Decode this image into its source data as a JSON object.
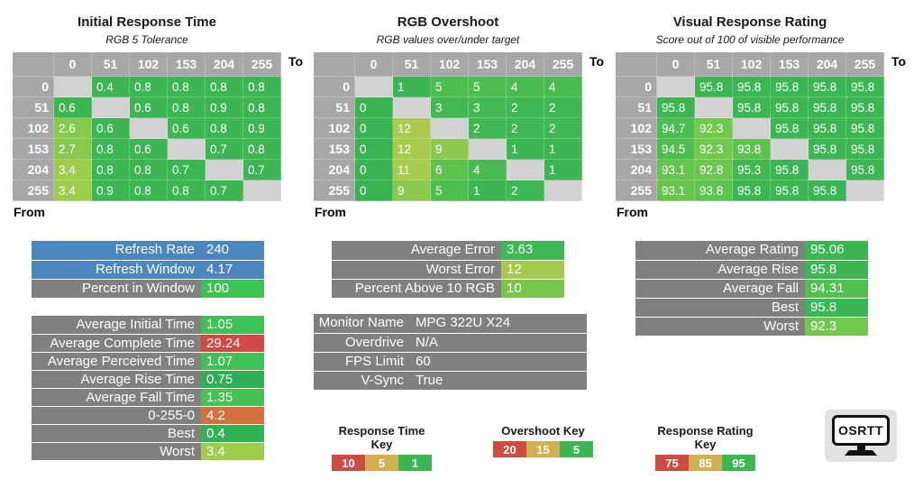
{
  "tables": [
    {
      "title": "Initial Response Time",
      "subtitle": "RGB 5 Tolerance",
      "to_label": "To",
      "from_label": "From",
      "columns": [
        "0",
        "51",
        "102",
        "153",
        "204",
        "255"
      ],
      "rows": [
        {
          "h": "0",
          "cells": [
            null,
            {
              "t": "0.4",
              "bg": "#3cb553"
            },
            {
              "t": "0.8",
              "bg": "#3cb553"
            },
            {
              "t": "0.8",
              "bg": "#3cb553"
            },
            {
              "t": "0.8",
              "bg": "#3cb553"
            },
            {
              "t": "0.8",
              "bg": "#3cb553"
            }
          ]
        },
        {
          "h": "51",
          "cells": [
            {
              "t": "0.6",
              "bg": "#3cb553"
            },
            null,
            {
              "t": "0.6",
              "bg": "#3cb553"
            },
            {
              "t": "0.8",
              "bg": "#3cb553"
            },
            {
              "t": "0.9",
              "bg": "#3cb553"
            },
            {
              "t": "0.8",
              "bg": "#3cb553"
            }
          ]
        },
        {
          "h": "102",
          "cells": [
            {
              "t": "2.6",
              "bg": "#85c94f"
            },
            {
              "t": "0.6",
              "bg": "#3cb553"
            },
            null,
            {
              "t": "0.6",
              "bg": "#3cb553"
            },
            {
              "t": "0.8",
              "bg": "#3cb553"
            },
            {
              "t": "0.9",
              "bg": "#3cb553"
            }
          ]
        },
        {
          "h": "153",
          "cells": [
            {
              "t": "2.7",
              "bg": "#87c94f"
            },
            {
              "t": "0.8",
              "bg": "#3cb553"
            },
            {
              "t": "0.6",
              "bg": "#3cb553"
            },
            null,
            {
              "t": "0.7",
              "bg": "#3cb553"
            },
            {
              "t": "0.8",
              "bg": "#3cb553"
            }
          ]
        },
        {
          "h": "204",
          "cells": [
            {
              "t": "3.4",
              "bg": "#9ecd4b"
            },
            {
              "t": "0.8",
              "bg": "#3cb553"
            },
            {
              "t": "0.8",
              "bg": "#3cb553"
            },
            {
              "t": "0.7",
              "bg": "#3cb553"
            },
            null,
            {
              "t": "0.7",
              "bg": "#3cb553"
            }
          ]
        },
        {
          "h": "255",
          "cells": [
            {
              "t": "3.4",
              "bg": "#9ecd4b"
            },
            {
              "t": "0.9",
              "bg": "#3cb553"
            },
            {
              "t": "0.8",
              "bg": "#3cb553"
            },
            {
              "t": "0.8",
              "bg": "#3cb553"
            },
            {
              "t": "0.7",
              "bg": "#3cb553"
            },
            null
          ]
        }
      ]
    },
    {
      "title": "RGB Overshoot",
      "subtitle": "RGB values over/under target",
      "to_label": "To",
      "from_label": "From",
      "columns": [
        "0",
        "51",
        "102",
        "153",
        "204",
        "255"
      ],
      "rows": [
        {
          "h": "0",
          "cells": [
            null,
            {
              "t": "1",
              "bg": "#3cb553"
            },
            {
              "t": "5",
              "bg": "#4fbe50"
            },
            {
              "t": "5",
              "bg": "#4fbe50"
            },
            {
              "t": "4",
              "bg": "#48bb51"
            },
            {
              "t": "4",
              "bg": "#48bb51"
            }
          ]
        },
        {
          "h": "51",
          "cells": [
            {
              "t": "0",
              "bg": "#3ab453"
            },
            null,
            {
              "t": "3",
              "bg": "#42b952"
            },
            {
              "t": "3",
              "bg": "#42b952"
            },
            {
              "t": "2",
              "bg": "#3fb753"
            },
            {
              "t": "2",
              "bg": "#3fb753"
            }
          ]
        },
        {
          "h": "102",
          "cells": [
            {
              "t": "0",
              "bg": "#3ab453"
            },
            {
              "t": "12",
              "bg": "#aacc4e"
            },
            null,
            {
              "t": "2",
              "bg": "#3fb753"
            },
            {
              "t": "2",
              "bg": "#3fb753"
            },
            {
              "t": "2",
              "bg": "#3fb753"
            }
          ]
        },
        {
          "h": "153",
          "cells": [
            {
              "t": "0",
              "bg": "#3ab453"
            },
            {
              "t": "12",
              "bg": "#aacc4e"
            },
            {
              "t": "9",
              "bg": "#8cc94e"
            },
            null,
            {
              "t": "1",
              "bg": "#3cb553"
            },
            {
              "t": "1",
              "bg": "#3cb553"
            }
          ]
        },
        {
          "h": "204",
          "cells": [
            {
              "t": "0",
              "bg": "#3ab453"
            },
            {
              "t": "11",
              "bg": "#a4cc4e"
            },
            {
              "t": "6",
              "bg": "#5ec24f"
            },
            {
              "t": "4",
              "bg": "#48bb51"
            },
            null,
            {
              "t": "1",
              "bg": "#3cb553"
            }
          ]
        },
        {
          "h": "255",
          "cells": [
            {
              "t": "0",
              "bg": "#3ab453"
            },
            {
              "t": "9",
              "bg": "#8cc94e"
            },
            {
              "t": "5",
              "bg": "#4fbe50"
            },
            {
              "t": "1",
              "bg": "#3cb553"
            },
            {
              "t": "2",
              "bg": "#3fb753"
            },
            null
          ]
        }
      ]
    },
    {
      "title": "Visual Response Rating",
      "subtitle": "Score out of 100 of visible performance",
      "to_label": "To",
      "from_label": "From",
      "columns": [
        "0",
        "51",
        "102",
        "153",
        "204",
        "255"
      ],
      "rows": [
        {
          "h": "0",
          "cells": [
            null,
            {
              "t": "95.8",
              "bg": "#3cb553"
            },
            {
              "t": "95.8",
              "bg": "#3cb553"
            },
            {
              "t": "95.8",
              "bg": "#3cb553"
            },
            {
              "t": "95.8",
              "bg": "#3cb553"
            },
            {
              "t": "95.8",
              "bg": "#3cb553"
            }
          ]
        },
        {
          "h": "51",
          "cells": [
            {
              "t": "95.8",
              "bg": "#3cb553"
            },
            null,
            {
              "t": "95.8",
              "bg": "#3cb553"
            },
            {
              "t": "95.8",
              "bg": "#3cb553"
            },
            {
              "t": "95.8",
              "bg": "#3cb553"
            },
            {
              "t": "95.8",
              "bg": "#3cb553"
            }
          ]
        },
        {
          "h": "102",
          "cells": [
            {
              "t": "94.7",
              "bg": "#4cbd50"
            },
            {
              "t": "92.3",
              "bg": "#70c84d"
            },
            null,
            {
              "t": "95.8",
              "bg": "#3cb553"
            },
            {
              "t": "95.8",
              "bg": "#3cb553"
            },
            {
              "t": "95.8",
              "bg": "#3cb553"
            }
          ]
        },
        {
          "h": "153",
          "cells": [
            {
              "t": "94.5",
              "bg": "#4fbe50"
            },
            {
              "t": "92.3",
              "bg": "#70c84d"
            },
            {
              "t": "93.8",
              "bg": "#5cc34f"
            },
            null,
            {
              "t": "95.8",
              "bg": "#3cb553"
            },
            {
              "t": "95.8",
              "bg": "#3cb553"
            }
          ]
        },
        {
          "h": "204",
          "cells": [
            {
              "t": "93.1",
              "bg": "#65c54e"
            },
            {
              "t": "92.8",
              "bg": "#6ac74d"
            },
            {
              "t": "95.3",
              "bg": "#41b852"
            },
            {
              "t": "95.8",
              "bg": "#3cb553"
            },
            null,
            {
              "t": "95.8",
              "bg": "#3cb553"
            }
          ]
        },
        {
          "h": "255",
          "cells": [
            {
              "t": "93.1",
              "bg": "#65c54e"
            },
            {
              "t": "93.8",
              "bg": "#5cc34f"
            },
            {
              "t": "95.8",
              "bg": "#3cb553"
            },
            {
              "t": "95.8",
              "bg": "#3cb553"
            },
            {
              "t": "95.8",
              "bg": "#3cb553"
            },
            null
          ]
        }
      ]
    }
  ],
  "panels": [
    {
      "name": "refresh-stats",
      "rows": [
        {
          "label": "Refresh Rate",
          "value": "240",
          "label_bg": "#4c86bf",
          "value_bg": "#4c86bf"
        },
        {
          "label": "Refresh Window",
          "value": "4.17",
          "label_bg": "#4c86bf",
          "value_bg": "#4c86bf"
        },
        {
          "label": "Percent in Window",
          "value": "100",
          "label_bg": "#808080",
          "value_bg": "#3ec253"
        }
      ]
    },
    {
      "name": "response-time-stats",
      "rows": [
        {
          "label": "Average Initial Time",
          "value": "1.05",
          "value_bg": "#3ec157"
        },
        {
          "label": "Average Complete Time",
          "value": "29.24",
          "value_bg": "#d14a41"
        },
        {
          "label": "Average Perceived Time",
          "value": "1.07",
          "value_bg": "#3ec157"
        },
        {
          "label": "Average Rise Time",
          "value": "0.75",
          "value_bg": "#2fae56"
        },
        {
          "label": "Average Fall Time",
          "value": "1.35",
          "value_bg": "#47c153"
        },
        {
          "label": "0-255-0",
          "value": "4.2",
          "value_bg": "#d2713e"
        },
        {
          "label": "Best",
          "value": "0.4",
          "value_bg": "#2fb254"
        },
        {
          "label": "Worst",
          "value": "3.4",
          "value_bg": "#9ccd4b"
        }
      ]
    },
    {
      "name": "overshoot-stats",
      "rows": [
        {
          "label": "Average Error",
          "value": "3.63",
          "value_bg": "#3fb754"
        },
        {
          "label": "Worst Error",
          "value": "12",
          "value_bg": "#a5c94d"
        },
        {
          "label": "Percent Above 10 RGB",
          "value": "10",
          "value_bg": "#76c64b"
        }
      ]
    },
    {
      "name": "monitor-info",
      "rows": [
        {
          "label": "Monitor Name",
          "value": "MPG 322U X24",
          "label_bg": "#808080",
          "value_bg": "#808080"
        },
        {
          "label": "Overdrive",
          "value": "N/A",
          "label_bg": "#808080",
          "value_bg": "#808080"
        },
        {
          "label": "FPS Limit",
          "value": "60",
          "label_bg": "#808080",
          "value_bg": "#808080"
        },
        {
          "label": "V-Sync",
          "value": "True",
          "label_bg": "#808080",
          "value_bg": "#808080"
        }
      ]
    },
    {
      "name": "rating-stats",
      "rows": [
        {
          "label": "Average Rating",
          "value": "95.06",
          "value_bg": "#3cb553"
        },
        {
          "label": "Average Rise",
          "value": "95.8",
          "value_bg": "#3cb553"
        },
        {
          "label": "Average Fall",
          "value": "94.31",
          "value_bg": "#52c04f"
        },
        {
          "label": "Best",
          "value": "95.8",
          "value_bg": "#3cb553"
        },
        {
          "label": "Worst",
          "value": "92.3",
          "value_bg": "#70c84d"
        }
      ]
    }
  ],
  "keys": [
    {
      "title": "Response Time Key",
      "swatches": [
        {
          "t": "10",
          "bg": "#cc4b42"
        },
        {
          "t": "5",
          "bg": "#d2b052"
        },
        {
          "t": "1",
          "bg": "#3cb553"
        }
      ]
    },
    {
      "title": "Overshoot Key",
      "swatches": [
        {
          "t": "20",
          "bg": "#cc4b42"
        },
        {
          "t": "15",
          "bg": "#d2b052"
        },
        {
          "t": "5",
          "bg": "#3cb553"
        }
      ]
    },
    {
      "title": "Response Rating Key",
      "swatches": [
        {
          "t": "75",
          "bg": "#cc4b42"
        },
        {
          "t": "85",
          "bg": "#d2b052"
        },
        {
          "t": "95",
          "bg": "#3cb553"
        }
      ]
    }
  ],
  "logo": {
    "text": "OSRTT"
  }
}
